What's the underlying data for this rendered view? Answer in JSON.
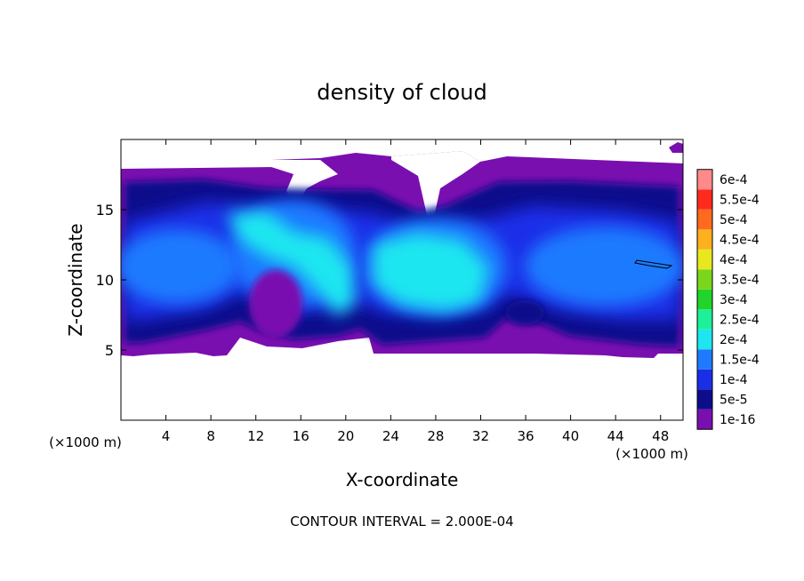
{
  "chart_data": {
    "type": "heatmap",
    "title": "density of cloud",
    "xlabel": "X-coordinate",
    "ylabel": "Z-coordinate",
    "x_unit": "(×1000 m)",
    "x_unit_right": "(×1000 m)",
    "xlim": [
      0,
      50
    ],
    "ylim": [
      0,
      20
    ],
    "xticks": [
      4,
      8,
      12,
      16,
      20,
      24,
      28,
      32,
      36,
      40,
      44,
      48
    ],
    "xtick_labels": [
      "4",
      "8",
      "12",
      "16",
      "20",
      "24",
      "28",
      "32",
      "36",
      "40",
      "44",
      "48"
    ],
    "yticks": [
      5,
      10,
      15
    ],
    "ytick_labels": [
      "5",
      "10",
      "15"
    ],
    "footer": "CONTOUR INTERVAL = 2.000E-04",
    "colorbar": {
      "placement": "right",
      "levels": [
        {
          "label": "1e-16",
          "color": "#7a0fb0"
        },
        {
          "label": "5e-5",
          "color": "#0d0d8c"
        },
        {
          "label": "1e-4",
          "color": "#1a2ee8"
        },
        {
          "label": "1.5e-4",
          "color": "#1f7aff"
        },
        {
          "label": "2e-4",
          "color": "#1ee6f0"
        },
        {
          "label": "2.5e-4",
          "color": "#1ef09a"
        },
        {
          "label": "3e-4",
          "color": "#22d42a"
        },
        {
          "label": "3.5e-4",
          "color": "#7ad61c"
        },
        {
          "label": "4e-4",
          "color": "#e8e81e"
        },
        {
          "label": "4.5e-4",
          "color": "#ffb01e"
        },
        {
          "label": "5e-4",
          "color": "#ff6a1e"
        },
        {
          "label": "5.5e-4",
          "color": "#ff2a1e"
        },
        {
          "label": "6e-4",
          "color": "#ff8a8a"
        }
      ]
    },
    "cloud_layer": {
      "z_bottom": 5,
      "z_top": 18
    },
    "features": [
      {
        "x": 2,
        "z": 11,
        "level": "1.5e-4"
      },
      {
        "x": 9,
        "z": 10.5,
        "level": "1e-4"
      },
      {
        "x": 16.5,
        "z": 12,
        "level": "2e-4"
      },
      {
        "x": 27,
        "z": 10.5,
        "level": "2e-4"
      },
      {
        "x": 44,
        "z": 11,
        "level": "1.5e-4"
      },
      {
        "x": 14.5,
        "z": 8,
        "level": "1e-16"
      }
    ]
  }
}
